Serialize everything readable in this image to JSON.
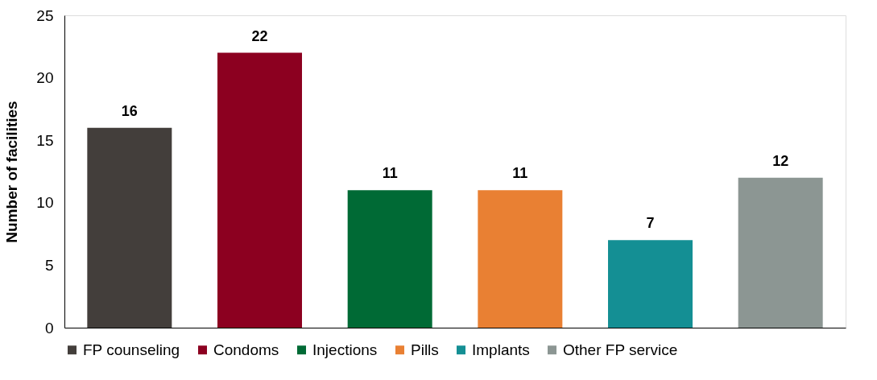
{
  "chart_data": {
    "type": "bar",
    "ylabel": "Number of facilities",
    "categories": [
      null,
      null,
      null,
      null,
      null,
      null
    ],
    "series": [
      {
        "name": "FP counseling",
        "color": "#433e3b",
        "values": [
          16,
          null,
          null,
          null,
          null,
          null
        ]
      },
      {
        "name": "Condoms",
        "color": "#8c0020",
        "values": [
          null,
          22,
          null,
          null,
          null,
          null
        ]
      },
      {
        "name": "Injections",
        "color": "#006a35",
        "values": [
          null,
          null,
          11,
          null,
          null,
          null
        ]
      },
      {
        "name": "Pills",
        "color": "#e98033",
        "values": [
          null,
          null,
          null,
          11,
          null,
          null
        ]
      },
      {
        "name": "Implants",
        "color": "#148f94",
        "values": [
          null,
          null,
          null,
          null,
          7,
          null
        ]
      },
      {
        "name": "Other FP service",
        "color": "#8c9693",
        "values": [
          null,
          null,
          null,
          null,
          null,
          12
        ]
      }
    ],
    "ylim": [
      0,
      25
    ],
    "yticks": [
      0,
      5,
      10,
      15,
      20,
      25
    ],
    "grid": false,
    "legend": "bottom",
    "data_labels": true,
    "tick_labels": "y"
  }
}
